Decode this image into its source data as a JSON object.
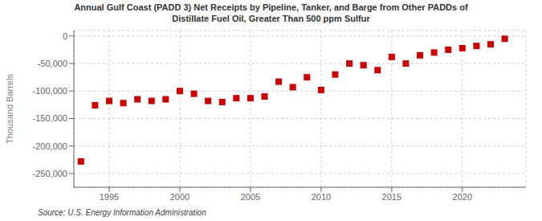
{
  "chart_data": {
    "type": "scatter",
    "title": "Annual Gulf Coast (PADD 3) Net Receipts by Pipeline, Tanker, and Barge from Other PADDs of\nDistillate Fuel Oil, Greater Than 500 ppm Sulfur",
    "ylabel": "Thousand Barrels",
    "annotations": [
      "Source: U.S. Energy Information Administration"
    ],
    "x": [
      1993,
      1994,
      1995,
      1996,
      1997,
      1998,
      1999,
      2000,
      2001,
      2002,
      2003,
      2004,
      2005,
      2006,
      2007,
      2008,
      2009,
      2010,
      2011,
      2012,
      2013,
      2014,
      2015,
      2016,
      2017,
      2018,
      2019,
      2020,
      2021,
      2022,
      2023
    ],
    "values": [
      -228000,
      -126000,
      -118000,
      -122000,
      -115000,
      -118000,
      -115000,
      -100000,
      -105000,
      -118000,
      -120000,
      -113000,
      -113000,
      -110000,
      -83000,
      -93000,
      -75000,
      -98000,
      -70000,
      -50000,
      -53000,
      -62000,
      -38000,
      -50000,
      -35000,
      -30000,
      -25000,
      -22000,
      -18000,
      -15000,
      -5000
    ],
    "color": "#cc0000",
    "marker": "square",
    "xlim": [
      1992.5,
      2024.5
    ],
    "xticks": [
      1995,
      2000,
      2005,
      2010,
      2015,
      2020
    ],
    "ylim": [
      -275000,
      10000
    ],
    "yticks": [
      0,
      {
        "value": -50000,
        "label": "-50,000"
      },
      {
        "value": -100000,
        "label": "-100,000"
      },
      {
        "value": -150000,
        "label": "-150,000"
      },
      {
        "value": -200000,
        "label": "-200,000"
      },
      {
        "value": -250000,
        "label": "-250,000"
      }
    ],
    "grid": true
  }
}
